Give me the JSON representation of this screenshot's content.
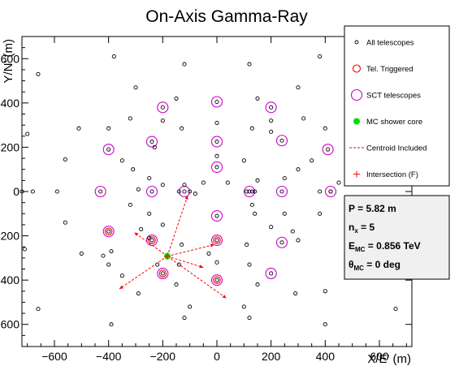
{
  "chart_data": {
    "type": "scatter",
    "title": "On-Axis Gamma-Ray",
    "xlabel": "X/E' (m)",
    "ylabel": "Y/N' (m)",
    "xlim": [
      -720,
      720
    ],
    "ylim": [
      -700,
      700
    ],
    "xticks": [
      -600,
      -400,
      -200,
      0,
      200,
      400,
      600
    ],
    "yticks": [
      -600,
      -400,
      -200,
      0,
      200,
      400,
      600
    ],
    "xtick_labels": [
      "−600",
      "−400",
      "−200",
      "0",
      "200",
      "400",
      "600"
    ],
    "ytick_labels": [
      "−600",
      "−400",
      "−200",
      "0",
      "200",
      "400",
      "600"
    ],
    "grid": false,
    "legend_position": "top-right",
    "legend": [
      {
        "label": "All telescopes",
        "marker": "small-open-circle",
        "color": "#000000"
      },
      {
        "label": "Tel. Triggered",
        "marker": "open-circle",
        "color": "#ff0000"
      },
      {
        "label": "SCT telescopes",
        "marker": "large-open-circle",
        "color": "#cc00cc"
      },
      {
        "label": "MC shower core",
        "marker": "filled-circle",
        "color": "#00e000"
      },
      {
        "label": "Centroid Included",
        "marker": "dashed-line",
        "color": "#ff0000"
      },
      {
        "label": "Intersection (F)",
        "marker": "plus",
        "color": "#ff0000"
      }
    ],
    "stats": {
      "p": {
        "name": "P",
        "value": "5.82 m"
      },
      "n": {
        "name": "n",
        "sub": "x",
        "value": "5"
      },
      "e": {
        "name": "E",
        "sub": "MC",
        "value": "0.856 TeV"
      },
      "theta": {
        "name": "θ",
        "sub": "MC",
        "value": "0 deg"
      }
    },
    "all_telescopes": [
      [
        -380,
        610
      ],
      [
        -120,
        575
      ],
      [
        120,
        575
      ],
      [
        380,
        610
      ],
      [
        -660,
        530
      ],
      [
        -300,
        470
      ],
      [
        300,
        470
      ],
      [
        -150,
        420
      ],
      [
        150,
        420
      ],
      [
        -230,
        200
      ],
      [
        0,
        160
      ],
      [
        200,
        270
      ],
      [
        -320,
        330
      ],
      [
        -200,
        320
      ],
      [
        0,
        310
      ],
      [
        200,
        320
      ],
      [
        320,
        330
      ],
      [
        -510,
        285
      ],
      [
        -400,
        285
      ],
      [
        -130,
        285
      ],
      [
        130,
        285
      ],
      [
        400,
        285
      ],
      [
        -700,
        260
      ],
      [
        -560,
        145
      ],
      [
        -350,
        140
      ],
      [
        -310,
        100
      ],
      [
        -250,
        60
      ],
      [
        -200,
        30
      ],
      [
        -290,
        10
      ],
      [
        -120,
        30
      ],
      [
        -80,
        -10
      ],
      [
        -50,
        40
      ],
      [
        40,
        40
      ],
      [
        100,
        140
      ],
      [
        130,
        0
      ],
      [
        150,
        50
      ],
      [
        250,
        60
      ],
      [
        300,
        100
      ],
      [
        350,
        140
      ],
      [
        560,
        170
      ],
      [
        -720,
        0
      ],
      [
        -680,
        0
      ],
      [
        -590,
        0
      ],
      [
        -140,
        0
      ],
      [
        -100,
        0
      ],
      [
        110,
        0
      ],
      [
        140,
        0
      ],
      [
        380,
        0
      ],
      [
        420,
        0
      ],
      [
        -560,
        -140
      ],
      [
        -320,
        -60
      ],
      [
        -250,
        -100
      ],
      [
        -200,
        -150
      ],
      [
        -280,
        -170
      ],
      [
        -250,
        -210
      ],
      [
        -130,
        -240
      ],
      [
        -140,
        -330
      ],
      [
        -220,
        -330
      ],
      [
        -390,
        -270
      ],
      [
        -500,
        -280
      ],
      [
        -710,
        -260
      ],
      [
        -350,
        -380
      ],
      [
        -400,
        -330
      ],
      [
        -420,
        -290
      ],
      [
        110,
        -240
      ],
      [
        140,
        -100
      ],
      [
        130,
        -60
      ],
      [
        250,
        -100
      ],
      [
        -30,
        -280
      ],
      [
        120,
        -330
      ],
      [
        200,
        -160
      ],
      [
        280,
        -180
      ],
      [
        300,
        -220
      ],
      [
        0,
        -320
      ],
      [
        -290,
        -460
      ],
      [
        290,
        -460
      ],
      [
        -150,
        -420
      ],
      [
        150,
        -420
      ],
      [
        -390,
        -600
      ],
      [
        -120,
        -570
      ],
      [
        120,
        -570
      ],
      [
        400,
        -600
      ],
      [
        660,
        -530
      ],
      [
        -660,
        -530
      ],
      [
        -100,
        -520
      ],
      [
        100,
        -520
      ],
      [
        400,
        -450
      ],
      [
        520,
        320
      ],
      [
        450,
        40
      ],
      [
        380,
        -100
      ]
    ],
    "sct_telescopes": [
      [
        -200,
        380
      ],
      [
        0,
        405
      ],
      [
        200,
        380
      ],
      [
        -400,
        190
      ],
      [
        -240,
        225
      ],
      [
        0,
        225
      ],
      [
        240,
        230
      ],
      [
        410,
        190
      ],
      [
        0,
        110
      ],
      [
        -430,
        0
      ],
      [
        -240,
        0
      ],
      [
        -120,
        0
      ],
      [
        120,
        0
      ],
      [
        240,
        0
      ],
      [
        420,
        0
      ],
      [
        0,
        -110
      ],
      [
        -400,
        -180
      ],
      [
        -240,
        -220
      ],
      [
        0,
        -220
      ],
      [
        240,
        -230
      ],
      [
        -200,
        -370
      ],
      [
        0,
        -400
      ],
      [
        200,
        -370
      ]
    ],
    "triggered_telescopes": [
      [
        -400,
        -180
      ],
      [
        -240,
        -220
      ],
      [
        0,
        -220
      ],
      [
        -200,
        -370
      ],
      [
        0,
        -400
      ]
    ],
    "mc_shower_core": [
      -183,
      -292
    ],
    "centroid_lines": [
      {
        "from": [
          -183,
          -292
        ],
        "to": [
          -108,
          -18
        ]
      },
      {
        "from": [
          -183,
          -292
        ],
        "to": [
          -360,
          -440
        ]
      },
      {
        "from": [
          -183,
          -292
        ],
        "to": [
          -305,
          -185
        ]
      },
      {
        "from": [
          -183,
          -292
        ],
        "to": [
          -10,
          -240
        ]
      },
      {
        "from": [
          -183,
          -292
        ],
        "to": [
          -50,
          -343
        ]
      },
      {
        "from": [
          -183,
          -292
        ],
        "to": [
          35,
          -482
        ]
      }
    ],
    "intersection": [
      -183,
      -292
    ]
  }
}
